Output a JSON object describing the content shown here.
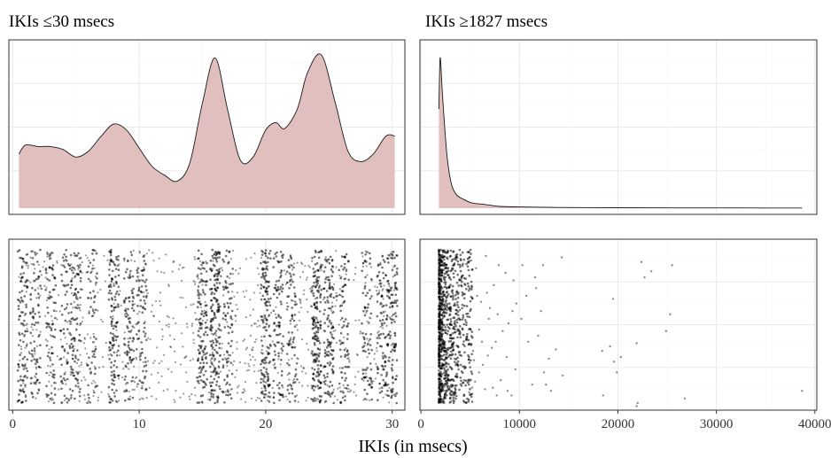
{
  "chart_data": [
    {
      "type": "area",
      "panel": "density-left",
      "title": "IKIs ≤30 msecs",
      "x": [
        0.5,
        1.0,
        2.0,
        3.0,
        4.0,
        5.0,
        6.0,
        7.0,
        8.0,
        9.0,
        10.0,
        11.0,
        12.0,
        13.0,
        14.0,
        15.0,
        16.0,
        17.0,
        18.0,
        19.0,
        20.0,
        20.8,
        21.5,
        22.5,
        23.3,
        24.4,
        25.5,
        26.5,
        27.5,
        28.5,
        29.5,
        30.2
      ],
      "y": [
        0.36,
        0.42,
        0.41,
        0.41,
        0.39,
        0.34,
        0.38,
        0.48,
        0.56,
        0.52,
        0.4,
        0.28,
        0.22,
        0.18,
        0.3,
        0.7,
        1.0,
        0.65,
        0.32,
        0.34,
        0.52,
        0.57,
        0.53,
        0.66,
        0.9,
        1.02,
        0.7,
        0.38,
        0.31,
        0.36,
        0.48,
        0.48
      ],
      "xlim": [
        -0.3,
        31.0
      ],
      "ylim": [
        0,
        1.12
      ],
      "grid": true
    },
    {
      "type": "area",
      "panel": "density-right",
      "title": "IKIs ≥1827 msecs",
      "x": [
        1827,
        1950,
        2150,
        2400,
        2700,
        3100,
        3600,
        4300,
        5200,
        6500,
        8000,
        10000,
        14000,
        20000,
        26000,
        32000,
        38700
      ],
      "y": [
        0.66,
        1.0,
        0.8,
        0.55,
        0.32,
        0.16,
        0.09,
        0.06,
        0.035,
        0.025,
        0.012,
        0.008,
        0.005,
        0.003,
        0.002,
        0.0015,
        0.001
      ],
      "xlim": [
        -100,
        40200
      ],
      "ylim": [
        0,
        1.12
      ],
      "grid": true
    },
    {
      "type": "scatter",
      "panel": "jitter-left",
      "dense_columns": [
        0.8,
        1.8,
        3.0,
        4.2,
        5.0,
        6.3,
        8.0,
        9.2,
        10.2,
        15.0,
        16.0,
        17.0,
        20.0,
        21.0,
        22.1,
        24.0,
        25.0,
        26.2,
        28.0,
        29.2,
        30.0
      ],
      "column_weights": [
        1.1,
        0.8,
        0.8,
        0.7,
        1.0,
        0.6,
        1.4,
        0.9,
        0.8,
        1.3,
        1.8,
        0.8,
        1.5,
        1.0,
        0.8,
        1.9,
        1.3,
        0.8,
        0.8,
        0.9,
        1.2
      ],
      "xlim": [
        -0.3,
        31.0
      ],
      "grid": true
    },
    {
      "type": "scatter",
      "panel": "jitter-right",
      "sparse_points_x": [
        14300,
        12400,
        11600,
        10700,
        9700,
        9300,
        8900,
        8300,
        7600,
        7200,
        6800,
        6300,
        5900,
        5500,
        5200,
        4900,
        10200,
        11900,
        13000,
        12700,
        9600,
        8100,
        7400,
        6700,
        6100,
        5600,
        5300,
        10300,
        11300,
        12200,
        13700,
        14400,
        9200,
        8600,
        7800,
        7000,
        6500,
        5900,
        5400,
        5100,
        10900,
        11700,
        12500,
        13200,
        9400,
        8700,
        7900,
        7300,
        6900,
        6200,
        5700,
        4800,
        8800,
        7700,
        6600
      ],
      "sparse_points_y": [
        0.95,
        0.9,
        0.82,
        0.7,
        0.65,
        0.6,
        0.52,
        0.47,
        0.4,
        0.36,
        0.31,
        0.25,
        0.2,
        0.14,
        0.1,
        0.07,
        0.55,
        0.44,
        0.29,
        0.12,
        0.22,
        0.15,
        0.77,
        0.72,
        0.66,
        0.88,
        0.34,
        0.9,
        0.12,
        0.6,
        0.35,
        0.18,
        0.05,
        0.85,
        0.58,
        0.62,
        0.09,
        0.48,
        0.28,
        0.93,
        0.4,
        0.75,
        0.2,
        0.08,
        0.8,
        0.3,
        0.9,
        0.1,
        0.55,
        0.4,
        0.7,
        0.15,
        0.08,
        0.05,
        0.96
      ],
      "outliers_x": [
        22400,
        22700,
        23400,
        25500,
        19500,
        25300,
        24900,
        18400,
        19200,
        21900,
        19600,
        20300,
        19900,
        18500,
        22000,
        21900,
        26800,
        38700
      ],
      "outliers_y": [
        0.92,
        0.82,
        0.86,
        0.9,
        0.68,
        0.58,
        0.47,
        0.34,
        0.37,
        0.39,
        0.27,
        0.3,
        0.2,
        0.05,
        0.0,
        -0.02,
        0.03,
        0.08
      ],
      "xlim": [
        -100,
        40200
      ],
      "grid": true
    }
  ],
  "axes": {
    "left": {
      "ticks": [
        0,
        10,
        20,
        30
      ],
      "tick_labels": [
        "0",
        "10",
        "20",
        "30"
      ]
    },
    "right": {
      "ticks": [
        0,
        10000,
        20000,
        30000,
        40000
      ],
      "tick_labels": [
        "0",
        "10000",
        "20000",
        "30000",
        "40000"
      ]
    },
    "xlabel": "IKIs (in msecs)"
  },
  "colors": {
    "density_fill": "#e2bfbf",
    "density_line": "#1a1a1a",
    "points": "#000000",
    "grid_major": "#ebebeb",
    "grid_minor": "#f5f5f5",
    "panel_border": "#333333"
  }
}
